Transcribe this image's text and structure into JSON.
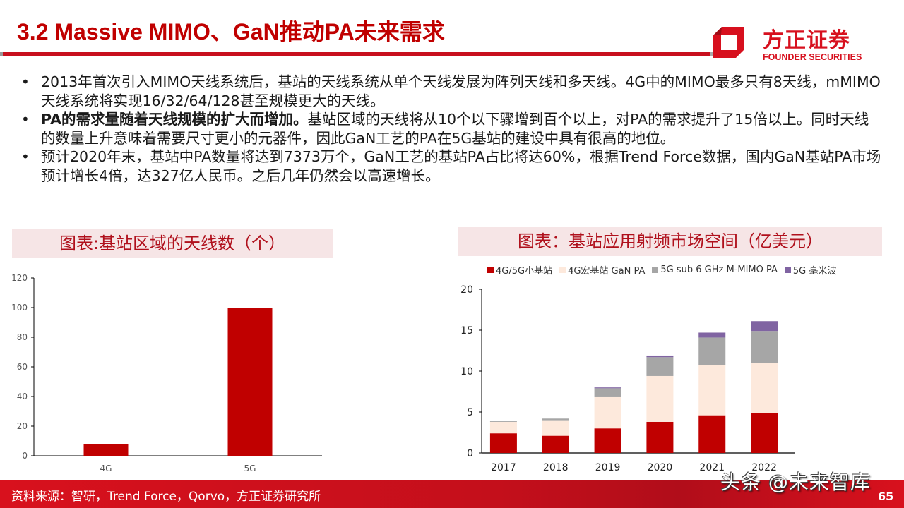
{
  "header": {
    "title": "3.2 Massive MIMO、GaN推动PA未来需求",
    "logo_cn": "方正证券",
    "logo_en": "FOUNDER SECURITIES",
    "accent_color": "#c00000"
  },
  "bullets": [
    {
      "bold": "",
      "text": "2013年首次引入MIMO天线系统后，基站的天线系统从单个天线发展为阵列天线和多天线。4G中的MIMO最多只有8天线，mMIMO天线系统将实现16/32/64/128甚至规模更大的天线。"
    },
    {
      "bold": "PA的需求量随着天线规模的扩大而增加。",
      "text": "基站区域的天线将从10个以下骤增到百个以上，对PA的需求提升了15倍以上。同时天线的数量上升意味着需要尺寸更小的元器件，因此GaN工艺的PA在5G基站的建设中具有很高的地位。"
    },
    {
      "bold": "",
      "text": "预计2020年末，基站中PA数量将达到7373万个，GaN工艺的基站PA占比将达60%，根据Trend Force数据，国内GaN基站PA市场预计增长4倍，达327亿人民币。之后几年仍然会以高速增长。"
    }
  ],
  "bullet_symbol": "•",
  "chart_data": [
    {
      "type": "bar",
      "title": "图表:基站区域的天线数（个）",
      "categories": [
        "4G",
        "5G"
      ],
      "values": [
        8,
        100
      ],
      "xlabel": "",
      "ylabel": "",
      "ylim": [
        0,
        120
      ],
      "yticks": [
        0,
        20,
        40,
        60,
        80,
        100,
        120
      ],
      "grid": false,
      "color": "#c00000"
    },
    {
      "type": "bar",
      "stacked": true,
      "title": "图表：基站应用射频市场空间（亿美元）",
      "categories": [
        "2017",
        "2018",
        "2019",
        "2020",
        "2021",
        "2022"
      ],
      "series": [
        {
          "name": "4G/5G小基站",
          "color": "#c00000",
          "values": [
            2.4,
            2.1,
            3.0,
            3.8,
            4.6,
            4.9
          ]
        },
        {
          "name": "4G宏基站 GaN PA",
          "color": "#fde9dc",
          "values": [
            1.4,
            1.9,
            3.9,
            5.6,
            6.1,
            6.1
          ]
        },
        {
          "name": "5G sub 6 GHz M-MIMO PA",
          "color": "#a6a6a6",
          "values": [
            0.1,
            0.2,
            1.0,
            2.3,
            3.4,
            3.9
          ]
        },
        {
          "name": "5G 毫米波",
          "color": "#8064a2",
          "values": [
            0.0,
            0.0,
            0.1,
            0.2,
            0.6,
            1.2
          ]
        }
      ],
      "xlabel": "",
      "ylabel": "",
      "ylim": [
        0,
        20
      ],
      "yticks": [
        0,
        5,
        10,
        15,
        20
      ],
      "grid": false,
      "legend_position": "top"
    }
  ],
  "footer": {
    "source": "资料来源：智研，Trend Force，Qorvo，方正证券研究所",
    "watermark": "头条 @未来智库",
    "page_number": "65"
  }
}
